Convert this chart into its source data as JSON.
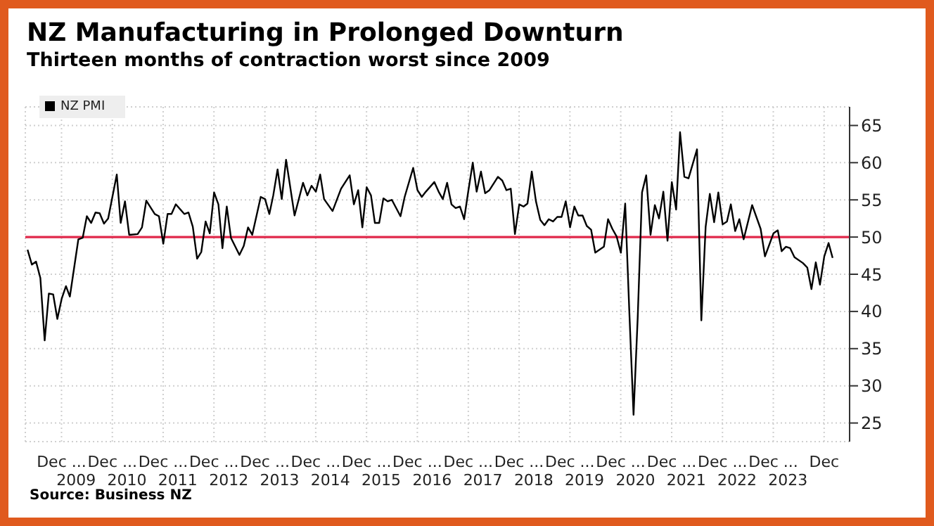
{
  "chart_data": {
    "type": "line",
    "title": "NZ Manufacturing in Prolonged Downturn",
    "subtitle": "Thirteen months of contraction worst since 2009",
    "x": [
      "2008-05",
      "2008-06",
      "2008-07",
      "2008-08",
      "2008-09",
      "2008-10",
      "2008-11",
      "2008-12",
      "2009-01",
      "2009-02",
      "2009-03",
      "2009-05",
      "2009-06",
      "2009-07",
      "2009-08",
      "2009-09",
      "2009-10",
      "2009-11",
      "2009-12",
      "2010-02",
      "2010-03",
      "2010-04",
      "2010-05",
      "2010-07",
      "2010-08",
      "2010-09",
      "2010-11",
      "2010-12",
      "2011-01",
      "2011-02",
      "2011-03",
      "2011-04",
      "2011-06",
      "2011-07",
      "2011-08",
      "2011-09",
      "2011-10",
      "2011-11",
      "2011-12",
      "2012-01",
      "2012-02",
      "2012-03",
      "2012-04",
      "2012-05",
      "2012-07",
      "2012-08",
      "2012-09",
      "2012-10",
      "2012-12",
      "2013-01",
      "2013-02",
      "2013-03",
      "2013-04",
      "2013-05",
      "2013-06",
      "2013-08",
      "2013-10",
      "2013-11",
      "2013-12",
      "2014-01",
      "2014-02",
      "2014-03",
      "2014-05",
      "2014-07",
      "2014-09",
      "2014-10",
      "2014-11",
      "2014-12",
      "2015-01",
      "2015-02",
      "2015-03",
      "2015-04",
      "2015-05",
      "2015-06",
      "2015-07",
      "2015-09",
      "2015-10",
      "2015-12",
      "2016-01",
      "2016-02",
      "2016-03",
      "2016-05",
      "2016-06",
      "2016-07",
      "2016-08",
      "2016-09",
      "2016-10",
      "2016-11",
      "2016-12",
      "2017-01",
      "2017-02",
      "2017-03",
      "2017-04",
      "2017-05",
      "2017-06",
      "2017-08",
      "2017-09",
      "2017-10",
      "2017-11",
      "2017-12",
      "2018-01",
      "2018-02",
      "2018-03",
      "2018-04",
      "2018-05",
      "2018-06",
      "2018-07",
      "2018-08",
      "2018-09",
      "2018-10",
      "2018-11",
      "2018-12",
      "2019-01",
      "2019-02",
      "2019-03",
      "2019-04",
      "2019-05",
      "2019-06",
      "2019-07",
      "2019-09",
      "2019-10",
      "2019-11",
      "2019-12",
      "2020-01",
      "2020-02",
      "2020-03",
      "2020-04",
      "2020-05",
      "2020-06",
      "2020-07",
      "2020-08",
      "2020-09",
      "2020-10",
      "2020-11",
      "2020-12",
      "2021-01",
      "2021-02",
      "2021-03",
      "2021-04",
      "2021-05",
      "2021-07",
      "2021-08",
      "2021-09",
      "2021-10",
      "2021-11",
      "2021-12",
      "2022-01",
      "2022-02",
      "2022-03",
      "2022-04",
      "2022-05",
      "2022-06",
      "2022-08",
      "2022-10",
      "2022-11",
      "2023-01",
      "2023-02",
      "2023-03",
      "2023-04",
      "2023-05",
      "2023-06",
      "2023-08",
      "2023-09",
      "2023-10",
      "2023-11",
      "2023-12",
      "2024-01",
      "2024-02",
      "2024-03"
    ],
    "series": [
      {
        "name": "NZ PMI",
        "color": "#000000",
        "values": [
          48.3,
          46.3,
          46.7,
          44.5,
          36.1,
          42.4,
          42.3,
          39,
          41.7,
          43.4,
          42,
          49.7,
          49.9,
          52.8,
          51.9,
          53.3,
          53.2,
          51.8,
          52.5,
          58.4,
          51.9,
          54.8,
          50.3,
          50.4,
          51.3,
          54.9,
          53.1,
          52.8,
          49.1,
          53.1,
          53.1,
          54.4,
          53.1,
          53.3,
          51.4,
          47.1,
          48,
          52.1,
          50.5,
          56,
          54.4,
          48.5,
          54.1,
          49.9,
          47.6,
          48.8,
          51.3,
          50.3,
          55.4,
          55.1,
          53.1,
          55.6,
          59.1,
          55.1,
          60.4,
          52.9,
          57.3,
          55.6,
          56.9,
          56.1,
          58.4,
          55.1,
          53.5,
          56.5,
          58.3,
          54.4,
          56.3,
          51.3,
          56.7,
          55.6,
          51.9,
          51.9,
          55.2,
          54.8,
          55,
          52.8,
          55.4,
          59.3,
          56.3,
          55.4,
          56.1,
          57.4,
          56.1,
          55.1,
          57.3,
          54.4,
          53.9,
          54.1,
          52.4,
          56.3,
          60,
          56.1,
          58.8,
          55.9,
          56.3,
          58.1,
          57.6,
          56.3,
          56.5,
          50.4,
          54.4,
          54.1,
          54.5,
          58.8,
          54.8,
          52.3,
          51.6,
          52.4,
          52.1,
          52.7,
          52.7,
          54.8,
          51.3,
          54.1,
          52.9,
          52.9,
          51.5,
          51,
          47.9,
          48.7,
          52.4,
          51.1,
          50.1,
          47.9,
          54.5,
          40.3,
          26.1,
          39.2,
          56,
          58.3,
          50.3,
          54.3,
          52.5,
          56.1,
          49.5,
          57.4,
          53.7,
          64.1,
          58.1,
          57.9,
          61.8,
          38.8,
          51.4,
          55.8,
          52,
          56,
          51.7,
          52.1,
          54.4,
          50.8,
          52.4,
          49.7,
          54.3,
          51.1,
          47.4,
          50.5,
          50.9,
          48.1,
          48.7,
          48.5,
          47.3,
          46.5,
          45.9,
          43,
          46.6,
          43.6,
          47.4,
          49.2,
          47.2
        ]
      }
    ],
    "xlim": [
      "2008-04-15",
      "2024-07-01"
    ],
    "xticks": [
      {
        "value": "2008-12-31",
        "label": "Dec ..."
      },
      {
        "value": "2009-12-31",
        "label": "Dec ..."
      },
      {
        "value": "2010-12-31",
        "label": "Dec ..."
      },
      {
        "value": "2011-12-31",
        "label": "Dec ..."
      },
      {
        "value": "2012-12-31",
        "label": "Dec ..."
      },
      {
        "value": "2013-12-31",
        "label": "Dec ..."
      },
      {
        "value": "2014-12-31",
        "label": "Dec ..."
      },
      {
        "value": "2015-12-31",
        "label": "Dec ..."
      },
      {
        "value": "2016-12-31",
        "label": "Dec ..."
      },
      {
        "value": "2017-12-31",
        "label": "Dec ..."
      },
      {
        "value": "2018-12-31",
        "label": "Dec ..."
      },
      {
        "value": "2019-12-31",
        "label": "Dec ..."
      },
      {
        "value": "2020-12-31",
        "label": "Dec ..."
      },
      {
        "value": "2021-12-31",
        "label": "Dec ..."
      },
      {
        "value": "2022-12-31",
        "label": "Dec ..."
      },
      {
        "value": "2023-12-31",
        "label": "Dec"
      }
    ],
    "x2lim": [
      "2008-04-15",
      "2024-07-01"
    ],
    "x2ticks": [
      {
        "value": "2009-04-15",
        "label": "2009"
      },
      {
        "value": "2010-04-15",
        "label": "2010"
      },
      {
        "value": "2011-04-15",
        "label": "2011"
      },
      {
        "value": "2012-04-15",
        "label": "2012"
      },
      {
        "value": "2013-04-15",
        "label": "2013"
      },
      {
        "value": "2014-04-15",
        "label": "2014"
      },
      {
        "value": "2015-04-15",
        "label": "2015"
      },
      {
        "value": "2016-04-15",
        "label": "2016"
      },
      {
        "value": "2017-04-15",
        "label": "2017"
      },
      {
        "value": "2018-04-15",
        "label": "2018"
      },
      {
        "value": "2019-04-15",
        "label": "2019"
      },
      {
        "value": "2020-04-15",
        "label": "2020"
      },
      {
        "value": "2021-04-15",
        "label": "2021"
      },
      {
        "value": "2022-04-15",
        "label": "2022"
      },
      {
        "value": "2023-04-15",
        "label": "2023"
      }
    ],
    "ylim": [
      22.5,
      67.5
    ],
    "yticks": [
      25,
      30,
      35,
      40,
      45,
      50,
      55,
      60,
      65
    ],
    "grid": true,
    "legend": "top left",
    "marker": "none",
    "line_style": "solid",
    "ref_lines": [
      {
        "axis": "y",
        "value": 50,
        "color": "#e0284a"
      }
    ],
    "annotations": [
      "Source: Business NZ"
    ]
  }
}
